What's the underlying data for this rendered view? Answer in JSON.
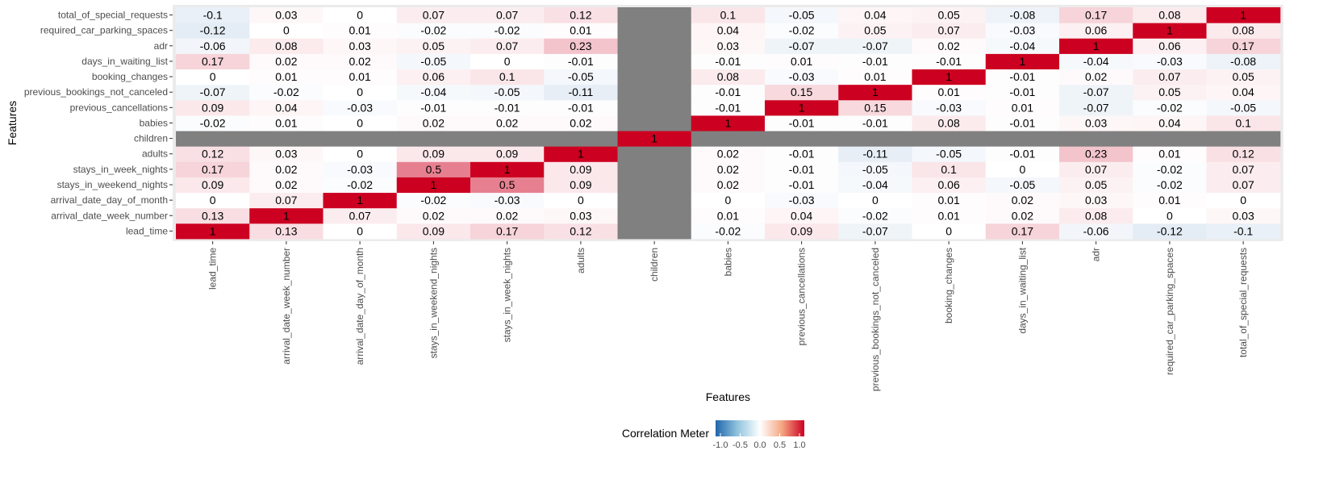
{
  "chart_data": {
    "type": "heatmap",
    "xlabel": "Features",
    "ylabel": "Features",
    "x_categories": [
      "lead_time",
      "arrival_date_week_number",
      "arrival_date_day_of_month",
      "stays_in_weekend_nights",
      "stays_in_week_nights",
      "adults",
      "children",
      "babies",
      "previous_cancellations",
      "previous_bookings_not_canceled",
      "booking_changes",
      "days_in_waiting_list",
      "adr",
      "required_car_parking_spaces",
      "total_of_special_requests"
    ],
    "y_categories": [
      "lead_time",
      "arrival_date_week_number",
      "arrival_date_day_of_month",
      "stays_in_weekend_nights",
      "stays_in_week_nights",
      "adults",
      "children",
      "babies",
      "previous_cancellations",
      "previous_bookings_not_canceled",
      "booking_changes",
      "days_in_waiting_list",
      "adr",
      "required_car_parking_spaces",
      "total_of_special_requests"
    ],
    "values": [
      [
        1,
        0.13,
        0,
        0.09,
        0.17,
        0.12,
        null,
        -0.02,
        0.09,
        -0.07,
        0,
        0.17,
        -0.06,
        -0.12,
        -0.1
      ],
      [
        0.13,
        1,
        0.07,
        0.02,
        0.02,
        0.03,
        null,
        0.01,
        0.04,
        -0.02,
        0.01,
        0.02,
        0.08,
        0,
        0.03
      ],
      [
        0,
        0.07,
        1,
        -0.02,
        -0.03,
        0,
        null,
        0,
        -0.03,
        0,
        0.01,
        0.02,
        0.03,
        0.01,
        0
      ],
      [
        0.09,
        0.02,
        -0.02,
        1,
        0.5,
        0.09,
        null,
        0.02,
        -0.01,
        -0.04,
        0.06,
        -0.05,
        0.05,
        -0.02,
        0.07
      ],
      [
        0.17,
        0.02,
        -0.03,
        0.5,
        1,
        0.09,
        null,
        0.02,
        -0.01,
        -0.05,
        0.1,
        0,
        0.07,
        -0.02,
        0.07
      ],
      [
        0.12,
        0.03,
        0,
        0.09,
        0.09,
        1,
        null,
        0.02,
        -0.01,
        -0.11,
        -0.05,
        -0.01,
        0.23,
        0.01,
        0.12
      ],
      [
        null,
        null,
        null,
        null,
        null,
        null,
        1,
        null,
        null,
        null,
        null,
        null,
        null,
        null,
        null
      ],
      [
        -0.02,
        0.01,
        0,
        0.02,
        0.02,
        0.02,
        null,
        1,
        -0.01,
        -0.01,
        0.08,
        -0.01,
        0.03,
        0.04,
        0.1
      ],
      [
        0.09,
        0.04,
        -0.03,
        -0.01,
        -0.01,
        -0.01,
        null,
        -0.01,
        1,
        0.15,
        -0.03,
        0.01,
        -0.07,
        -0.02,
        -0.05
      ],
      [
        -0.07,
        -0.02,
        0,
        -0.04,
        -0.05,
        -0.11,
        null,
        -0.01,
        0.15,
        1,
        0.01,
        -0.01,
        -0.07,
        0.05,
        0.04
      ],
      [
        0,
        0.01,
        0.01,
        0.06,
        0.1,
        -0.05,
        null,
        0.08,
        -0.03,
        0.01,
        1,
        -0.01,
        0.02,
        0.07,
        0.05
      ],
      [
        0.17,
        0.02,
        0.02,
        -0.05,
        0,
        -0.01,
        null,
        -0.01,
        0.01,
        -0.01,
        -0.01,
        1,
        -0.04,
        -0.03,
        -0.08
      ],
      [
        -0.06,
        0.08,
        0.03,
        0.05,
        0.07,
        0.23,
        null,
        0.03,
        -0.07,
        -0.07,
        0.02,
        -0.04,
        1,
        0.06,
        0.17
      ],
      [
        -0.12,
        0,
        0.01,
        -0.02,
        -0.02,
        0.01,
        null,
        0.04,
        -0.02,
        0.05,
        0.07,
        -0.03,
        0.06,
        1,
        0.08
      ],
      [
        -0.1,
        0.03,
        0,
        0.07,
        0.07,
        0.12,
        null,
        0.1,
        -0.05,
        0.04,
        0.05,
        -0.08,
        0.17,
        0.08,
        1
      ]
    ],
    "color_scale": {
      "low": "#2166ac",
      "mid": "#ffffff",
      "high": "#cc0020",
      "na": "#808080",
      "limits": [
        -1,
        1
      ]
    },
    "legend": {
      "title": "Correlation Meter",
      "ticks": [
        "-1.0",
        "-0.5",
        "0.0",
        "0.5",
        "1.0"
      ],
      "position": "bottom"
    }
  }
}
